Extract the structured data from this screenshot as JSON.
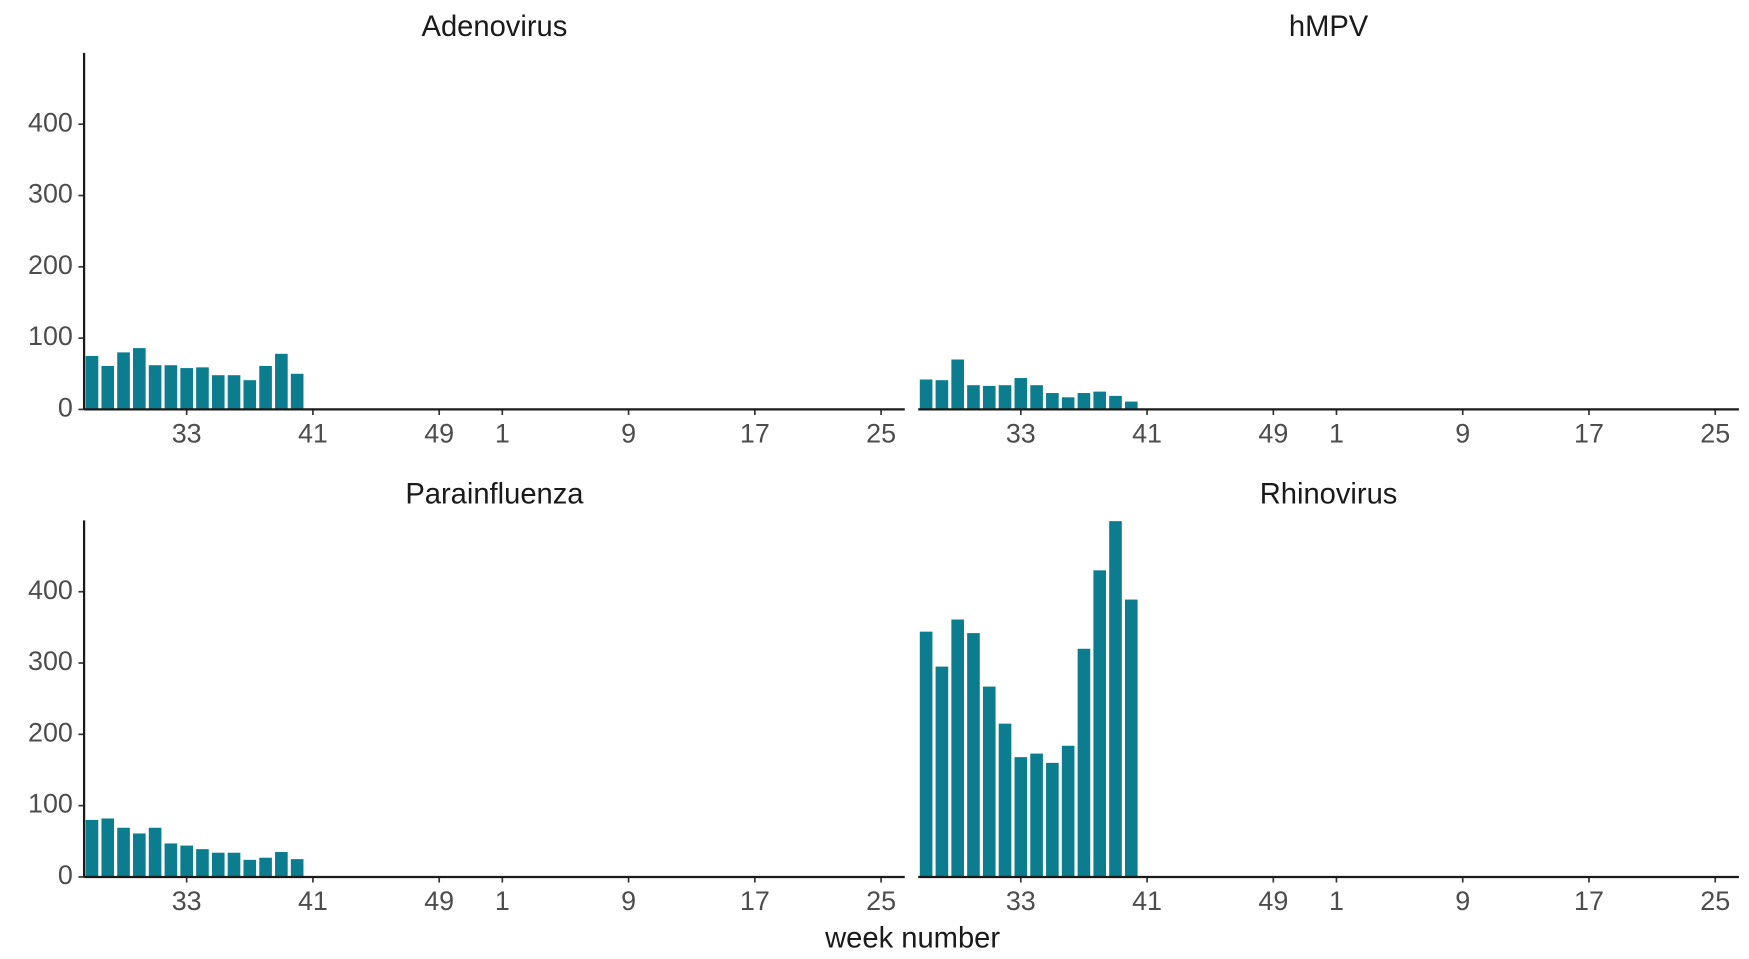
{
  "xlabel": "week number",
  "chart_data": [
    {
      "type": "bar",
      "title": "Adenovirus",
      "color": "#0b7d8f",
      "categories": [
        null,
        null,
        null,
        null,
        null,
        null,
        "33",
        null,
        null,
        null,
        null,
        null,
        null,
        null,
        "41",
        null,
        null,
        null,
        null,
        null,
        null,
        null,
        "49",
        null,
        null,
        null,
        "1",
        null,
        null,
        null,
        null,
        null,
        null,
        null,
        "9",
        null,
        null,
        null,
        null,
        null,
        null,
        null,
        "17",
        null,
        null,
        null,
        null,
        null,
        null,
        null,
        "25",
        null
      ],
      "values": [
        75,
        61,
        80,
        86,
        62,
        62,
        58,
        59,
        48,
        48,
        41,
        61,
        78,
        50,
        null,
        null,
        null,
        null,
        null,
        null,
        null,
        null,
        null,
        null,
        null,
        null,
        null,
        null,
        null,
        null,
        null,
        null,
        null,
        null,
        null,
        null,
        null,
        null,
        null,
        null,
        null,
        null,
        null,
        null,
        null,
        null,
        null,
        null,
        null,
        null,
        null,
        null
      ],
      "ylim": [
        0,
        500
      ],
      "yticks": [
        0,
        100,
        200,
        300,
        400
      ]
    },
    {
      "type": "bar",
      "title": "hMPV",
      "color": "#0b7d8f",
      "categories": [
        null,
        null,
        null,
        null,
        null,
        null,
        "33",
        null,
        null,
        null,
        null,
        null,
        null,
        null,
        "41",
        null,
        null,
        null,
        null,
        null,
        null,
        null,
        "49",
        null,
        null,
        null,
        "1",
        null,
        null,
        null,
        null,
        null,
        null,
        null,
        "9",
        null,
        null,
        null,
        null,
        null,
        null,
        null,
        "17",
        null,
        null,
        null,
        null,
        null,
        null,
        null,
        "25",
        null
      ],
      "values": [
        42,
        41,
        70,
        34,
        33,
        34,
        44,
        34,
        23,
        17,
        23,
        25,
        19,
        11,
        null,
        null,
        null,
        null,
        null,
        null,
        null,
        null,
        null,
        null,
        null,
        null,
        null,
        null,
        null,
        null,
        null,
        null,
        null,
        null,
        null,
        null,
        null,
        null,
        null,
        null,
        null,
        null,
        null,
        null,
        null,
        null,
        null,
        null,
        null,
        null,
        null,
        null
      ],
      "ylim": [
        0,
        500
      ]
    },
    {
      "type": "bar",
      "title": "Parainfluenza",
      "color": "#0b7d8f",
      "categories": [
        null,
        null,
        null,
        null,
        null,
        null,
        "33",
        null,
        null,
        null,
        null,
        null,
        null,
        null,
        "41",
        null,
        null,
        null,
        null,
        null,
        null,
        null,
        "49",
        null,
        null,
        null,
        "1",
        null,
        null,
        null,
        null,
        null,
        null,
        null,
        "9",
        null,
        null,
        null,
        null,
        null,
        null,
        null,
        "17",
        null,
        null,
        null,
        null,
        null,
        null,
        null,
        "25",
        null
      ],
      "values": [
        80,
        82,
        69,
        61,
        69,
        47,
        44,
        39,
        34,
        34,
        24,
        27,
        35,
        25,
        null,
        null,
        null,
        null,
        null,
        null,
        null,
        null,
        null,
        null,
        null,
        null,
        null,
        null,
        null,
        null,
        null,
        null,
        null,
        null,
        null,
        null,
        null,
        null,
        null,
        null,
        null,
        null,
        null,
        null,
        null,
        null,
        null,
        null,
        null,
        null,
        null,
        null
      ],
      "ylim": [
        0,
        500
      ],
      "yticks": [
        0,
        100,
        200,
        300,
        400
      ]
    },
    {
      "type": "bar",
      "title": "Rhinovirus",
      "color": "#0b7d8f",
      "categories": [
        null,
        null,
        null,
        null,
        null,
        null,
        "33",
        null,
        null,
        null,
        null,
        null,
        null,
        null,
        "41",
        null,
        null,
        null,
        null,
        null,
        null,
        null,
        "49",
        null,
        null,
        null,
        "1",
        null,
        null,
        null,
        null,
        null,
        null,
        null,
        "9",
        null,
        null,
        null,
        null,
        null,
        null,
        null,
        "17",
        null,
        null,
        null,
        null,
        null,
        null,
        null,
        "25",
        null
      ],
      "values": [
        344,
        295,
        361,
        342,
        267,
        215,
        168,
        173,
        160,
        184,
        320,
        430,
        499,
        389,
        null,
        null,
        null,
        null,
        null,
        null,
        null,
        null,
        null,
        null,
        null,
        null,
        null,
        null,
        null,
        null,
        null,
        null,
        null,
        null,
        null,
        null,
        null,
        null,
        null,
        null,
        null,
        null,
        null,
        null,
        null,
        null,
        null,
        null,
        null,
        null,
        null,
        null
      ],
      "ylim": [
        0,
        500
      ]
    }
  ]
}
